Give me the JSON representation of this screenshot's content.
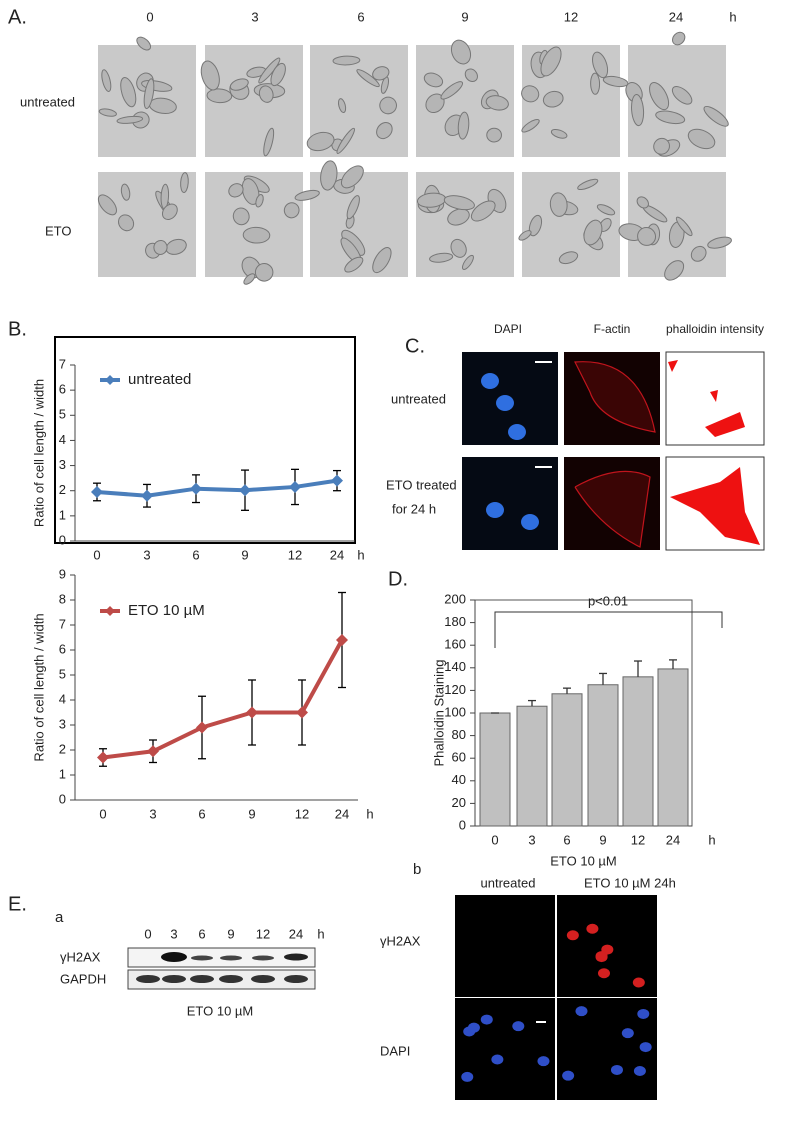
{
  "panel_a": {
    "label": "A.",
    "times": [
      "0",
      "3",
      "6",
      "9",
      "12",
      "24"
    ],
    "unit": "h",
    "rows": [
      "untreated",
      "ETO"
    ]
  },
  "panel_b": {
    "label": "B."
  },
  "panel_c": {
    "label": "C.",
    "columns": [
      "DAPI",
      "F-actin",
      "phalloidin intensity"
    ],
    "rows": [
      "untreated",
      "ETO treated",
      "for 24 h"
    ]
  },
  "panel_d": {
    "label": "D."
  },
  "panel_e": {
    "label": "E.",
    "sub_a": "a",
    "lanes": [
      "0",
      "3",
      "6",
      "9",
      "12",
      "24"
    ],
    "unit": "h",
    "bands": [
      "γH2AX",
      "GAPDH"
    ],
    "treatment": "ETO 10 µM",
    "sub_b": "b",
    "columns": [
      "untreated",
      "ETO  10 µM  24h"
    ],
    "rows": [
      "γH2AX",
      "DAPI"
    ]
  },
  "chart_data": [
    {
      "type": "line",
      "ylabel": "Ratio of cell length / width",
      "categories": [
        "0",
        "3",
        "6",
        "9",
        "12",
        "24"
      ],
      "x_unit": "h",
      "series": [
        {
          "name": "untreated",
          "color": "#4a7ebb",
          "values": [
            1.95,
            1.8,
            2.08,
            2.02,
            2.15,
            2.4
          ],
          "errors": [
            0.35,
            0.45,
            0.55,
            0.8,
            0.7,
            0.4
          ]
        }
      ],
      "ylim": [
        0,
        7
      ],
      "yticks": [
        0,
        1,
        2,
        3,
        4,
        5,
        6,
        7
      ]
    },
    {
      "type": "line",
      "ylabel": "Ratio of cell length / width",
      "categories": [
        "0",
        "3",
        "6",
        "9",
        "12",
        "24"
      ],
      "x_unit": "h",
      "series": [
        {
          "name": "ETO 10 µM",
          "color": "#be4b48",
          "values": [
            1.7,
            1.95,
            2.9,
            3.5,
            3.5,
            6.4
          ],
          "errors": [
            0.35,
            0.45,
            1.25,
            1.3,
            1.3,
            1.9
          ]
        }
      ],
      "ylim": [
        0,
        9
      ],
      "yticks": [
        0,
        1,
        2,
        3,
        4,
        5,
        6,
        7,
        8,
        9
      ]
    },
    {
      "type": "bar",
      "ylabel": "Phalloidin Staining",
      "xlabel": "ETO 10 µM",
      "annotation": "p<0.01",
      "categories": [
        "0",
        "3",
        "6",
        "9",
        "12",
        "24"
      ],
      "x_unit": "h",
      "color": "#c0c0c0",
      "values": [
        100,
        106,
        117,
        125,
        132,
        139
      ],
      "errors": [
        0,
        5,
        5,
        10,
        14,
        8
      ],
      "ylim": [
        0,
        200
      ],
      "yticks": [
        0,
        20,
        40,
        60,
        80,
        100,
        120,
        140,
        160,
        180,
        200
      ]
    }
  ]
}
